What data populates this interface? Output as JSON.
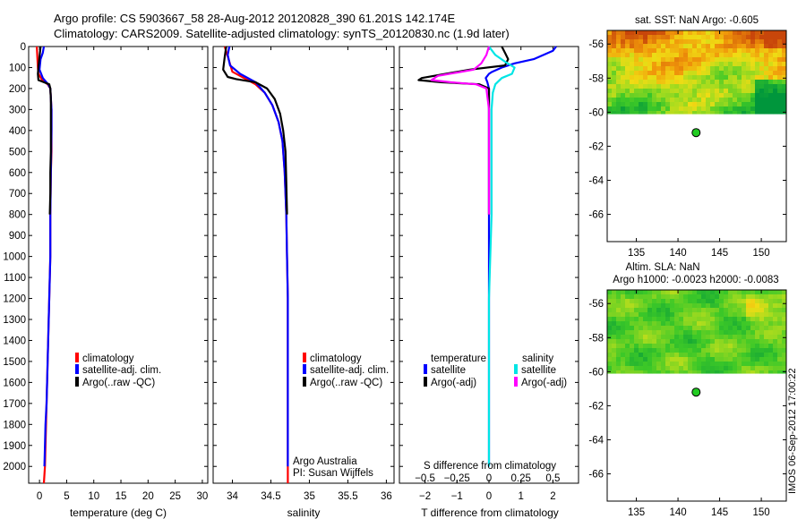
{
  "header": {
    "line1": "Argo profile: CS 5903667_58 28-Aug-2012 20120828_390 61.201S 142.174E",
    "line2": "Climatology: CARS2009. Satellite-adjusted climatology: synTS_20120830.nc (1.9d later)"
  },
  "colors": {
    "clim": "#ff0000",
    "sat": "#0000ff",
    "argo": "#000000",
    "sat_s": "#00e5e5",
    "argo_s": "#ff00ff",
    "float_marker": "#22cc22"
  },
  "chart_data": [
    {
      "id": "temperature",
      "type": "line",
      "xlabel": "temperature (deg C)",
      "ylabel": "",
      "xlim": [
        -2,
        31
      ],
      "ylim": [
        2080,
        0
      ],
      "xticks": [
        0,
        5,
        10,
        15,
        20,
        25,
        30
      ],
      "xtick_labels": [
        "0",
        "5",
        "10",
        "15",
        "20",
        "25",
        "30"
      ],
      "yticks": [
        0,
        100,
        200,
        300,
        400,
        500,
        600,
        700,
        800,
        900,
        1000,
        1100,
        1200,
        1300,
        1400,
        1500,
        1600,
        1700,
        1800,
        1900,
        2000
      ],
      "ytick_labels": [
        "0",
        "100",
        "200",
        "300",
        "400",
        "500",
        "600",
        "700",
        "800",
        "900",
        "1000",
        "1100",
        "1200",
        "1300",
        "1400",
        "1500",
        "1600",
        "1700",
        "1800",
        "1900",
        "2000"
      ],
      "legend": {
        "placement": "lower-middle",
        "entries": [
          "climatology",
          "satellite-adj. clim.",
          "Argo(..raw -QC)"
        ]
      },
      "series": [
        {
          "name": "climatology",
          "color_key": "clim",
          "x": [
            -0.5,
            -0.4,
            -0.3,
            -0.2,
            0.5,
            1.5,
            2.0,
            2.2,
            2.2,
            2.2,
            2.1,
            2.0,
            2.0,
            1.8,
            1.6,
            1.4,
            1.2,
            1.1,
            1.0,
            0.8
          ],
          "depth": [
            0,
            50,
            100,
            130,
            160,
            180,
            200,
            300,
            400,
            500,
            600,
            800,
            1000,
            1200,
            1400,
            1600,
            1800,
            1900,
            2000,
            2080
          ]
        },
        {
          "name": "satellite-adj. clim.",
          "color_key": "sat",
          "x": [
            0.8,
            0.6,
            0.2,
            0.0,
            0.6,
            1.6,
            2.0,
            2.2,
            2.2,
            2.1,
            2.0,
            2.0,
            1.9,
            1.7,
            1.5,
            1.3,
            1.1,
            1.0,
            0.9
          ],
          "depth": [
            0,
            30,
            60,
            110,
            150,
            180,
            200,
            300,
            400,
            600,
            800,
            1000,
            1100,
            1300,
            1500,
            1700,
            1800,
            1900,
            2000
          ]
        },
        {
          "name": "Argo(..raw -QC)",
          "color_key": "argo",
          "x": [
            0.2,
            0.0,
            -0.2,
            -0.3,
            -0.2,
            0.8,
            1.8,
            2.0,
            2.1,
            2.1,
            2.1,
            2.1,
            2.0,
            2.0,
            1.9
          ],
          "depth": [
            0,
            50,
            100,
            130,
            160,
            170,
            180,
            200,
            250,
            300,
            400,
            500,
            600,
            700,
            800
          ]
        }
      ]
    },
    {
      "id": "salinity",
      "type": "line",
      "xlabel": "salinity",
      "ylabel": "",
      "xlim": [
        33.75,
        36.1
      ],
      "ylim": [
        2080,
        0
      ],
      "xticks": [
        34,
        34.5,
        35,
        35.5,
        36
      ],
      "xtick_labels": [
        "34",
        "34.5",
        "35",
        "35.5",
        "36"
      ],
      "legend": {
        "placement": "lower-middle",
        "entries": [
          "climatology",
          "satellite-adj. clim.",
          "Argo(..raw -QC)"
        ]
      },
      "annotations": [
        "Argo Australia",
        "PI: Susan Wijffels"
      ],
      "series": [
        {
          "name": "climatology",
          "color_key": "clim",
          "x": [
            33.9,
            33.95,
            34.0,
            34.15,
            34.3,
            34.42,
            34.52,
            34.6,
            34.65,
            34.68,
            34.7,
            34.71,
            34.72,
            34.72,
            34.72,
            34.72
          ],
          "depth": [
            0,
            60,
            120,
            150,
            180,
            220,
            280,
            360,
            450,
            600,
            800,
            1000,
            1200,
            1500,
            1800,
            2080
          ]
        },
        {
          "name": "satellite-adj. clim.",
          "color_key": "sat",
          "x": [
            33.96,
            33.94,
            33.97,
            34.1,
            34.3,
            34.42,
            34.52,
            34.6,
            34.65,
            34.68,
            34.7,
            34.71,
            34.72,
            34.72,
            34.72,
            34.72
          ],
          "depth": [
            0,
            40,
            90,
            130,
            170,
            220,
            280,
            360,
            450,
            600,
            800,
            1000,
            1200,
            1500,
            1800,
            2000
          ]
        },
        {
          "name": "Argo(..raw -QC)",
          "color_key": "argo",
          "x": [
            33.92,
            33.9,
            33.88,
            33.94,
            34.05,
            34.3,
            34.45,
            34.55,
            34.62,
            34.66,
            34.69,
            34.7,
            34.71
          ],
          "depth": [
            0,
            50,
            110,
            145,
            155,
            170,
            200,
            250,
            320,
            400,
            500,
            650,
            800
          ]
        }
      ]
    },
    {
      "id": "difference",
      "type": "line",
      "xlabel": "T difference from climatology",
      "top_axis_label": "S difference from climatology",
      "xlim": [
        -2.8,
        2.8
      ],
      "ylim": [
        2080,
        0
      ],
      "xticks": [
        -2,
        -1,
        0,
        1,
        2
      ],
      "xtick_labels": [
        "−2",
        "−1",
        "0",
        "1",
        "2"
      ],
      "sticks": [
        -0.5,
        -0.25,
        0,
        0.25,
        0.5
      ],
      "stick_labels": [
        "−0.5",
        "−0.25",
        "0",
        "0.25",
        "0.5"
      ],
      "legend": {
        "placement": "lower-middle",
        "temperature_title": "temperature",
        "salinity_title": "salinity",
        "temperature_entries": [
          "satellite",
          "Argo(-adj)"
        ],
        "salinity_entries": [
          "satellite",
          "Argo(-adj)"
        ]
      },
      "series": [
        {
          "name": "temperature satellite",
          "color_key": "sat",
          "x": [
            2.1,
            2.0,
            1.4,
            0.8,
            0.4,
            0.1,
            0.0,
            -0.1,
            -0.05,
            0.0,
            0.0,
            0.0,
            0.0,
            0.0,
            0.0,
            0.0,
            0.0
          ],
          "depth": [
            0,
            20,
            60,
            80,
            100,
            120,
            130,
            150,
            170,
            200,
            300,
            500,
            800,
            1100,
            1500,
            1800,
            2000
          ]
        },
        {
          "name": "temperature Argo(-adj)",
          "color_key": "argo",
          "x": [
            0.4,
            0.5,
            0.6,
            0.5,
            -0.6,
            -2.1,
            -2.2,
            -1.5,
            -0.3,
            0.0,
            0.0,
            0.0
          ],
          "depth": [
            0,
            30,
            60,
            90,
            110,
            150,
            160,
            170,
            180,
            200,
            300,
            800
          ]
        },
        {
          "name": "salinity satellite",
          "color_key": "sat_s",
          "x": [
            0.0,
            0.05,
            0.12,
            0.2,
            0.18,
            0.1,
            0.05,
            0.03,
            0.02,
            0.02,
            0.02,
            0.0,
            0.0,
            0.0
          ],
          "depth": [
            0,
            40,
            70,
            100,
            130,
            150,
            180,
            220,
            300,
            500,
            800,
            1200,
            1600,
            2000
          ]
        },
        {
          "name": "salinity Argo(-adj)",
          "color_key": "argo_s",
          "x": [
            0.0,
            -0.02,
            -0.06,
            -0.12,
            -0.4,
            -0.45,
            -0.3,
            -0.1,
            -0.02,
            0.0,
            0.0
          ],
          "depth": [
            0,
            40,
            80,
            110,
            140,
            160,
            170,
            180,
            200,
            300,
            800
          ]
        }
      ]
    },
    {
      "id": "sat-sst-map",
      "type": "heatmap",
      "title": "sat. SST: NaN Argo: -0.605",
      "xlim": [
        131.5,
        153
      ],
      "ylim": [
        -67.6,
        -55.2
      ],
      "xticks": [
        135,
        140,
        145,
        150
      ],
      "xtick_labels": [
        "135",
        "140",
        "145",
        "150"
      ],
      "yticks": [
        -56,
        -58,
        -60,
        -62,
        -64,
        -66
      ],
      "ytick_labels": [
        "-56",
        "-58",
        "-60",
        "-62",
        "-64",
        "-66"
      ],
      "data_lat_range": [
        -60.1,
        -55.2
      ],
      "float_position": [
        142.174,
        -61.201
      ]
    },
    {
      "id": "altim-sla-map",
      "type": "heatmap",
      "title_line1": "Altim. SLA: NaN",
      "title_line2": "Argo h1000: -0.0023 h2000: -0.0083",
      "xlim": [
        131.5,
        153
      ],
      "ylim": [
        -67.6,
        -55.2
      ],
      "xticks": [
        135,
        140,
        145,
        150
      ],
      "xtick_labels": [
        "135",
        "140",
        "145",
        "150"
      ],
      "yticks": [
        -56,
        -58,
        -60,
        -62,
        -64,
        -66
      ],
      "ytick_labels": [
        "-56",
        "-58",
        "-60",
        "-62",
        "-64",
        "-66"
      ],
      "data_lat_range": [
        -60.1,
        -55.2
      ],
      "float_position": [
        142.174,
        -61.201
      ]
    }
  ],
  "footer": {
    "stamp": "IMOS 06-Sep-2012 17:00:22"
  }
}
